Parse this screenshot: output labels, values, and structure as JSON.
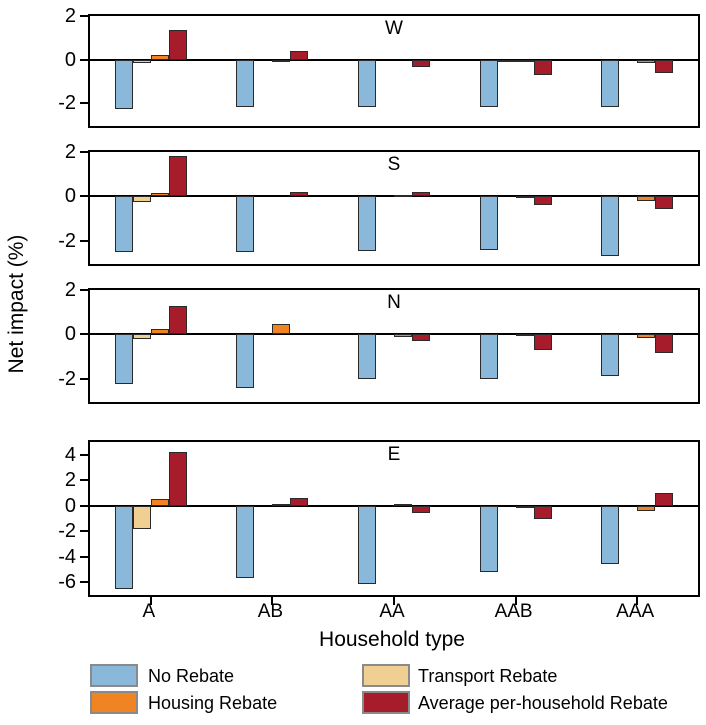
{
  "chart_data": {
    "type": "bar",
    "xlabel": "Household type",
    "ylabel": "Net impact (%)",
    "categories": [
      "A",
      "AB",
      "AA",
      "AAB",
      "AAA"
    ],
    "grid": false,
    "legend_position": "bottom",
    "panels": [
      {
        "title": "W",
        "ylim": [
          -3.05,
          2
        ],
        "yticks": [
          2,
          0,
          -2
        ],
        "series": [
          {
            "name": "No Rebate",
            "color": "#8ab8db",
            "values": [
              -2.25,
              -2.2,
              -2.2,
              -2.2,
              -2.2
            ]
          },
          {
            "name": "Transport Rebate",
            "color": "#f0d092",
            "values": [
              -0.15,
              0,
              0,
              -0.05,
              0
            ]
          },
          {
            "name": "Housing Rebate",
            "color": "#f18422",
            "values": [
              0.2,
              -0.05,
              0,
              -0.1,
              -0.15
            ]
          },
          {
            "name": "Average per-household Rebate",
            "color": "#a61c2b",
            "values": [
              1.35,
              0.4,
              -0.35,
              -0.7,
              -0.6
            ]
          }
        ]
      },
      {
        "title": "S",
        "ylim": [
          -3.05,
          2
        ],
        "yticks": [
          2,
          0,
          -2
        ],
        "series": [
          {
            "name": "No Rebate",
            "color": "#8ab8db",
            "values": [
              -2.5,
              -2.5,
              -2.45,
              -2.4,
              -2.7
            ]
          },
          {
            "name": "Transport Rebate",
            "color": "#f0d092",
            "values": [
              -0.25,
              0,
              0,
              0,
              0
            ]
          },
          {
            "name": "Housing Rebate",
            "color": "#f18422",
            "values": [
              0.15,
              0,
              0.05,
              -0.07,
              -0.2
            ]
          },
          {
            "name": "Average per-household Rebate",
            "color": "#a61c2b",
            "values": [
              1.8,
              0.2,
              0.2,
              -0.4,
              -0.55
            ]
          }
        ]
      },
      {
        "title": "N",
        "ylim": [
          -3.05,
          2
        ],
        "yticks": [
          2,
          0,
          -2
        ],
        "series": [
          {
            "name": "No Rebate",
            "color": "#8ab8db",
            "values": [
              -2.25,
              -2.4,
              -2.0,
              -2.0,
              -1.9
            ]
          },
          {
            "name": "Transport Rebate",
            "color": "#f0d092",
            "values": [
              -0.2,
              0,
              0,
              0,
              0
            ]
          },
          {
            "name": "Housing Rebate",
            "color": "#f18422",
            "values": [
              0.25,
              0.45,
              -0.1,
              -0.05,
              -0.15
            ]
          },
          {
            "name": "Average per-household Rebate",
            "color": "#a61c2b",
            "values": [
              1.3,
              0,
              -0.3,
              -0.7,
              -0.85
            ]
          }
        ]
      },
      {
        "title": "E",
        "ylim": [
          -7,
          5
        ],
        "yticks": [
          4,
          2,
          0,
          -2,
          -4,
          -6
        ],
        "series": [
          {
            "name": "No Rebate",
            "color": "#8ab8db",
            "values": [
              -6.5,
              -5.7,
              -6.1,
              -5.2,
              -4.6
            ]
          },
          {
            "name": "Transport Rebate",
            "color": "#f0d092",
            "values": [
              -1.8,
              0,
              0,
              0,
              0
            ]
          },
          {
            "name": "Housing Rebate",
            "color": "#f18422",
            "values": [
              0.5,
              0.1,
              0.05,
              -0.2,
              -0.4
            ]
          },
          {
            "name": "Average per-household Rebate",
            "color": "#a61c2b",
            "values": [
              4.2,
              0.6,
              -0.6,
              -1.0,
              1.0
            ]
          }
        ]
      }
    ]
  },
  "legend": {
    "entries": [
      {
        "label": "No Rebate",
        "color": "#8ab8db"
      },
      {
        "label": "Housing Rebate",
        "color": "#f18422"
      },
      {
        "label": "Transport Rebate",
        "color": "#f0d092"
      },
      {
        "label": "Average per-household Rebate",
        "color": "#a61c2b"
      }
    ]
  }
}
